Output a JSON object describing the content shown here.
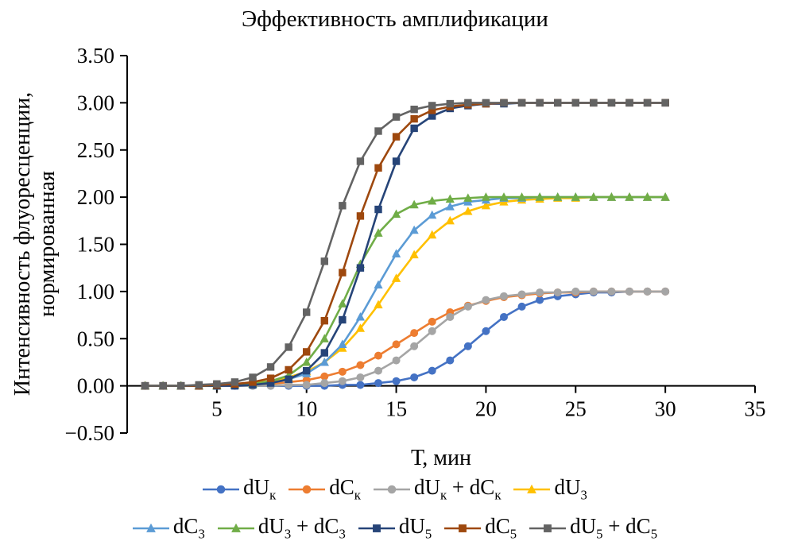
{
  "chart_data": {
    "type": "line",
    "title": "Эффективность амплификации",
    "xlabel": "Т, мин",
    "ylabel_lines": [
      "Интенсивность флуоресценции,",
      "нормированная"
    ],
    "xlim": [
      0,
      35
    ],
    "ylim": [
      -0.5,
      3.5
    ],
    "grid": false,
    "legend_position": "bottom",
    "x_ticks": [
      {
        "value": 5,
        "label": "5"
      },
      {
        "value": 10,
        "label": "10"
      },
      {
        "value": 15,
        "label": "15"
      },
      {
        "value": 20,
        "label": "20"
      },
      {
        "value": 25,
        "label": "25"
      },
      {
        "value": 30,
        "label": "30"
      },
      {
        "value": 35,
        "label": "35"
      }
    ],
    "y_ticks": [
      {
        "value": 3.5,
        "label": "3.50"
      },
      {
        "value": 3.0,
        "label": "3.00"
      },
      {
        "value": 2.5,
        "label": "2.50"
      },
      {
        "value": 2.0,
        "label": "2.00"
      },
      {
        "value": 1.5,
        "label": "1.50"
      },
      {
        "value": 1.0,
        "label": "1.00"
      },
      {
        "value": 0.5,
        "label": "0.50"
      },
      {
        "value": 0.0,
        "label": "0.00"
      },
      {
        "value": -0.5,
        "label": "−0.50"
      }
    ],
    "x": [
      1,
      2,
      3,
      4,
      5,
      6,
      7,
      8,
      9,
      10,
      11,
      12,
      13,
      14,
      15,
      16,
      17,
      18,
      19,
      20,
      21,
      22,
      23,
      24,
      25,
      26,
      27,
      28,
      29,
      30
    ],
    "series": [
      {
        "id": "dUk",
        "name_segments": [
          {
            "text": "dU",
            "sub": "к"
          }
        ],
        "marker": "circle",
        "color": "#4472C4",
        "values": [
          0,
          0,
          0,
          0,
          0,
          0,
          0,
          0,
          0,
          0,
          0,
          0.01,
          0.01,
          0.03,
          0.05,
          0.09,
          0.16,
          0.27,
          0.42,
          0.58,
          0.73,
          0.84,
          0.91,
          0.95,
          0.97,
          0.99,
          0.99,
          1,
          1,
          1
        ]
      },
      {
        "id": "dCk",
        "name_segments": [
          {
            "text": "dC",
            "sub": "к"
          }
        ],
        "marker": "circle",
        "color": "#ED7D31",
        "values": [
          0,
          0,
          0,
          0,
          0.01,
          0.01,
          0.01,
          0.02,
          0.04,
          0.06,
          0.1,
          0.15,
          0.22,
          0.32,
          0.44,
          0.56,
          0.68,
          0.78,
          0.85,
          0.9,
          0.94,
          0.96,
          0.98,
          0.99,
          0.99,
          1,
          1,
          1,
          1,
          1
        ]
      },
      {
        "id": "dUk_dCk",
        "name_segments": [
          {
            "text": "dU",
            "sub": "к"
          },
          {
            "text": " + dC",
            "sub": "к"
          }
        ],
        "marker": "circle",
        "color": "#A5A5A5",
        "values": [
          0,
          0,
          0,
          0,
          0,
          0,
          0,
          0,
          0.01,
          0.01,
          0.03,
          0.05,
          0.09,
          0.16,
          0.27,
          0.42,
          0.58,
          0.73,
          0.84,
          0.91,
          0.95,
          0.97,
          0.99,
          0.99,
          1,
          1,
          1,
          1,
          1,
          1
        ]
      },
      {
        "id": "dU3",
        "name_segments": [
          {
            "text": "dU",
            "sub": "3"
          }
        ],
        "marker": "triangle",
        "color": "#FFC000",
        "values": [
          0,
          0,
          0,
          0,
          0.01,
          0.02,
          0.03,
          0.05,
          0.09,
          0.15,
          0.25,
          0.4,
          0.61,
          0.86,
          1.14,
          1.39,
          1.6,
          1.75,
          1.85,
          1.91,
          1.95,
          1.97,
          1.98,
          1.99,
          1.99,
          2,
          2,
          2,
          2,
          2
        ]
      },
      {
        "id": "dC3",
        "name_segments": [
          {
            "text": "dC",
            "sub": "3"
          }
        ],
        "marker": "triangle",
        "color": "#5B9BD5",
        "values": [
          0,
          0,
          0,
          0,
          0,
          0.01,
          0.02,
          0.03,
          0.07,
          0.13,
          0.25,
          0.44,
          0.73,
          1.07,
          1.4,
          1.65,
          1.81,
          1.9,
          1.95,
          1.97,
          1.99,
          1.99,
          2,
          2,
          2,
          2,
          2,
          2,
          2,
          2
        ]
      },
      {
        "id": "dU3_dC3",
        "name_segments": [
          {
            "text": "dU",
            "sub": "3"
          },
          {
            "text": " + dC",
            "sub": "3"
          }
        ],
        "marker": "triangle",
        "color": "#70AD47",
        "values": [
          0,
          0,
          0,
          0,
          0,
          0.01,
          0.02,
          0.05,
          0.11,
          0.25,
          0.5,
          0.87,
          1.29,
          1.62,
          1.82,
          1.92,
          1.96,
          1.98,
          1.99,
          2,
          2,
          2,
          2,
          2,
          2,
          2,
          2,
          2,
          2,
          2
        ]
      },
      {
        "id": "dU5",
        "name_segments": [
          {
            "text": "dU",
            "sub": "5"
          }
        ],
        "marker": "square",
        "color": "#264478",
        "values": [
          0,
          0,
          0,
          0,
          0,
          0,
          0.01,
          0.03,
          0.07,
          0.16,
          0.35,
          0.7,
          1.25,
          1.87,
          2.38,
          2.73,
          2.86,
          2.94,
          2.97,
          2.99,
          2.99,
          3,
          3,
          3,
          3,
          3,
          3,
          3,
          3,
          3
        ]
      },
      {
        "id": "dC5",
        "name_segments": [
          {
            "text": "dC",
            "sub": "5"
          }
        ],
        "marker": "square",
        "color": "#9E480E",
        "values": [
          0,
          0,
          0,
          0,
          0.01,
          0.02,
          0.04,
          0.08,
          0.17,
          0.36,
          0.69,
          1.2,
          1.8,
          2.31,
          2.64,
          2.83,
          2.92,
          2.96,
          2.98,
          2.99,
          3,
          3,
          3,
          3,
          3,
          3,
          3,
          3,
          3,
          3
        ]
      },
      {
        "id": "dU5_dC5",
        "name_segments": [
          {
            "text": "dU",
            "sub": "5"
          },
          {
            "text": " + dC",
            "sub": "5"
          }
        ],
        "marker": "square",
        "color": "#636363",
        "values": [
          0,
          0,
          0,
          0.01,
          0.02,
          0.04,
          0.09,
          0.2,
          0.41,
          0.78,
          1.32,
          1.91,
          2.38,
          2.7,
          2.85,
          2.93,
          2.97,
          2.99,
          3,
          3,
          3,
          3,
          3,
          3,
          3,
          3,
          3,
          3,
          3,
          3
        ]
      }
    ],
    "legend_rows": [
      [
        0,
        1,
        2,
        3
      ],
      [
        4,
        5,
        6,
        7,
        8
      ]
    ]
  },
  "colors": {
    "axis": "#000000",
    "background": "#ffffff"
  }
}
